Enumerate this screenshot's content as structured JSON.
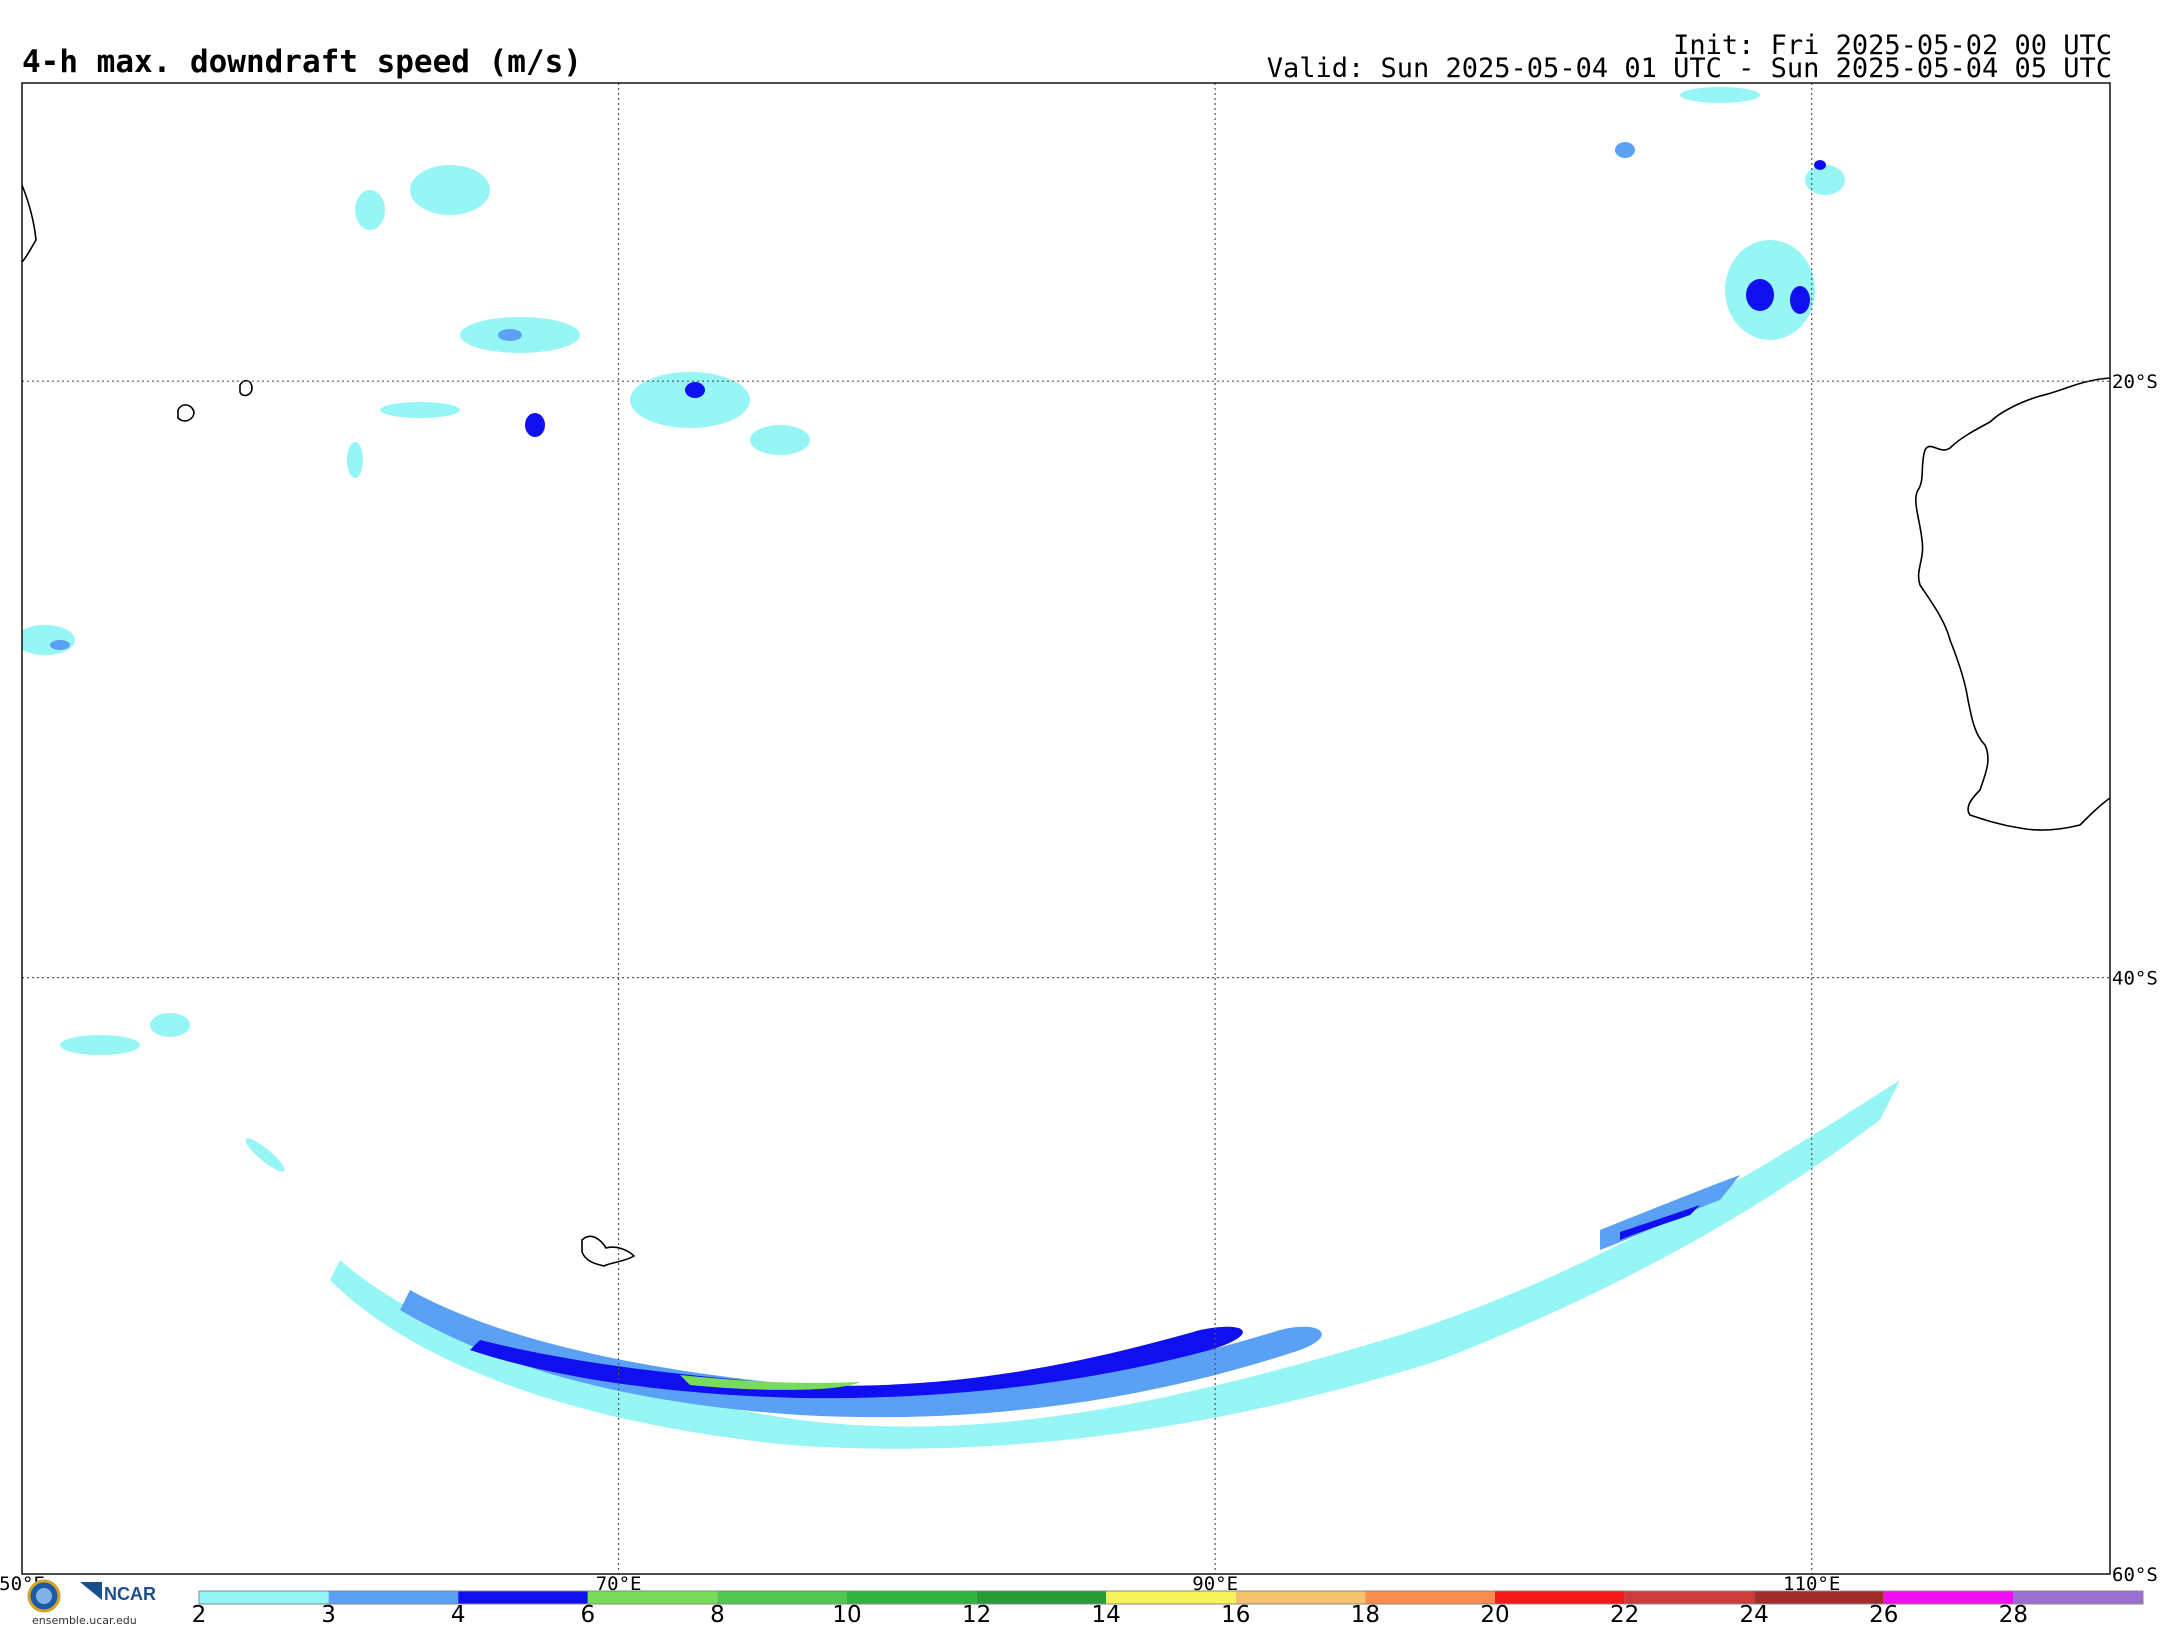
{
  "header": {
    "title": "4-h max. downdraft speed (m/s)",
    "init": "Init: Fri 2025-05-02 00 UTC",
    "valid": "Valid: Sun 2025-05-04 01 UTC - Sun 2025-05-04 05 UTC"
  },
  "map": {
    "lon_range": [
      50,
      120
    ],
    "lat_range": [
      -10,
      -60
    ],
    "lon_grid": [
      50,
      70,
      90,
      110
    ],
    "lat_grid": [
      -20,
      -40,
      -60
    ],
    "lon_labels": [
      "50°E",
      "70°E",
      "90°E",
      "110°E"
    ],
    "lat_labels": [
      "20°S",
      "40°S",
      "60°S"
    ],
    "gridline_color": "#555555"
  },
  "colorbar": {
    "ticks": [
      "2",
      "3",
      "4",
      "6",
      "8",
      "10",
      "12",
      "14",
      "16",
      "18",
      "20",
      "22",
      "24",
      "26",
      "28"
    ],
    "colors": [
      "#96f5f5",
      "#5aa0f5",
      "#0f0ff0",
      "#78dc5a",
      "#50c850",
      "#32b43c",
      "#289b37",
      "#f5f55a",
      "#f5c36e",
      "#fa8c50",
      "#f51919",
      "#cd3c3c",
      "#a02d2d",
      "#f00ff0",
      "#9b6ed2"
    ]
  },
  "footer": {
    "ncar": "NCAR",
    "url": "ensemble.ucar.edu"
  }
}
